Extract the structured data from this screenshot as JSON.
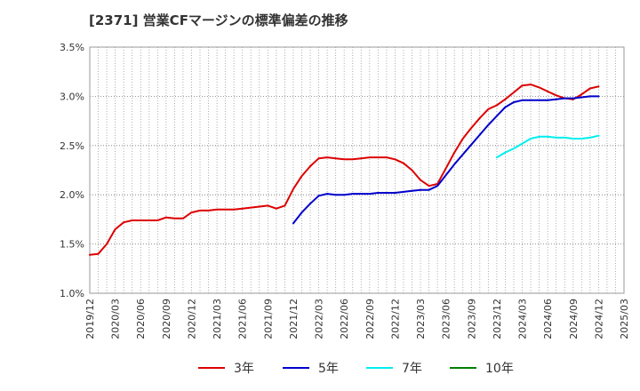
{
  "chart_data": {
    "type": "line",
    "title": "[2371]  営業CFマージンの標準偏差の推移",
    "xlabel": "",
    "ylabel": "",
    "ylim": [
      1.0,
      3.5
    ],
    "y_ticks": [
      "1.0%",
      "1.5%",
      "2.0%",
      "2.5%",
      "3.0%",
      "3.5%"
    ],
    "y_tick_values": [
      1.0,
      1.5,
      2.0,
      2.5,
      3.0,
      3.5
    ],
    "x_ticks": [
      "2019/12",
      "2020/03",
      "2020/06",
      "2020/09",
      "2020/12",
      "2021/03",
      "2021/06",
      "2021/09",
      "2021/12",
      "2022/03",
      "2022/06",
      "2022/09",
      "2022/12",
      "2023/03",
      "2023/06",
      "2023/09",
      "2023/12",
      "2024/03",
      "2024/06",
      "2024/09",
      "2024/12",
      "2025/03"
    ],
    "x_range_months": [
      0,
      63
    ],
    "grid": true,
    "legend_position": "bottom",
    "series": [
      {
        "name": "3年",
        "color": "#dd0000",
        "x_months": [
          0,
          1,
          2,
          3,
          4,
          5,
          6,
          7,
          8,
          9,
          10,
          11,
          12,
          13,
          14,
          15,
          16,
          17,
          18,
          19,
          20,
          21,
          22,
          23,
          24,
          25,
          26,
          27,
          28,
          29,
          30,
          31,
          32,
          33,
          34,
          35,
          36,
          37,
          38,
          39,
          40,
          41,
          42,
          43,
          44,
          45,
          46,
          47,
          48,
          49,
          50,
          51,
          52,
          53,
          54,
          55,
          56,
          57,
          58,
          59,
          60
        ],
        "values": [
          1.39,
          1.4,
          1.5,
          1.65,
          1.72,
          1.74,
          1.74,
          1.74,
          1.74,
          1.77,
          1.76,
          1.76,
          1.82,
          1.84,
          1.84,
          1.85,
          1.85,
          1.85,
          1.86,
          1.87,
          1.88,
          1.89,
          1.86,
          1.89,
          2.06,
          2.19,
          2.29,
          2.37,
          2.38,
          2.37,
          2.36,
          2.36,
          2.37,
          2.38,
          2.38,
          2.38,
          2.36,
          2.32,
          2.25,
          2.15,
          2.09,
          2.11,
          2.27,
          2.43,
          2.57,
          2.68,
          2.78,
          2.87,
          2.91,
          2.97,
          3.04,
          3.11,
          3.12,
          3.09,
          3.05,
          3.01,
          2.98,
          2.97,
          3.02,
          3.08,
          3.1
        ]
      },
      {
        "name": "5年",
        "color": "#0000cc",
        "x_months": [
          24,
          25,
          26,
          27,
          28,
          29,
          30,
          31,
          32,
          33,
          34,
          35,
          36,
          37,
          38,
          39,
          40,
          41,
          42,
          43,
          44,
          45,
          46,
          47,
          48,
          49,
          50,
          51,
          52,
          53,
          54,
          55,
          56,
          57,
          58,
          59,
          60
        ],
        "values": [
          1.71,
          1.82,
          1.91,
          1.99,
          2.01,
          2.0,
          2.0,
          2.01,
          2.01,
          2.01,
          2.02,
          2.02,
          2.02,
          2.03,
          2.04,
          2.05,
          2.05,
          2.09,
          2.2,
          2.31,
          2.41,
          2.51,
          2.61,
          2.71,
          2.8,
          2.89,
          2.94,
          2.96,
          2.96,
          2.96,
          2.96,
          2.97,
          2.98,
          2.98,
          2.99,
          3.0,
          3.0
        ]
      },
      {
        "name": "7年",
        "color": "#00eeee",
        "x_months": [
          48,
          49,
          50,
          51,
          52,
          53,
          54,
          55,
          56,
          57,
          58,
          59,
          60
        ],
        "values": [
          2.38,
          2.43,
          2.47,
          2.52,
          2.57,
          2.59,
          2.59,
          2.58,
          2.58,
          2.57,
          2.57,
          2.58,
          2.6
        ]
      },
      {
        "name": "10年",
        "color": "#008000",
        "x_months": [],
        "values": []
      }
    ]
  }
}
